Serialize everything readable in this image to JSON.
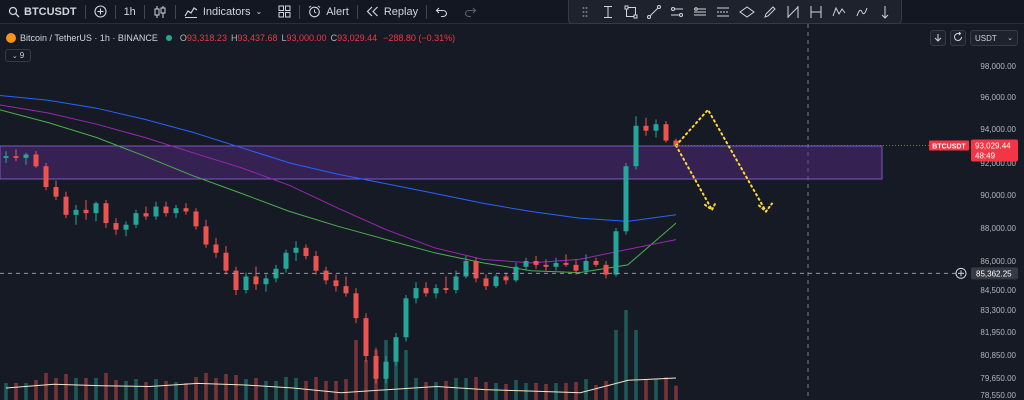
{
  "toolbar": {
    "symbol": "BTCUSDT",
    "add_symbol_icon": "plus-circle-icon",
    "interval": "1h",
    "chart_type_icon": "candles-icon",
    "indicators_label": "Indicators",
    "layouts_icon": "grid-icon",
    "alert_label": "Alert",
    "replay_label": "Replay",
    "undo_icon": "undo-icon",
    "redo_icon": "redo-icon"
  },
  "drawing_tools": [
    "text-cursor-icon",
    "rectangle-icon",
    "trend-line-icon",
    "parallel-channel-icon",
    "horizontal-ray-icon",
    "long-position-icon",
    "ellipse-icon",
    "pen-icon",
    "fib-retracement-icon",
    "pitchfork-icon",
    "xabcd-pattern-icon",
    "path-icon",
    "text-icon"
  ],
  "legend": {
    "title": "Bitcoin / TetherUS · 1h · BINANCE",
    "o_key": "O",
    "o_val": "93,318.23",
    "h_key": "H",
    "h_val": "93,437.68",
    "l_key": "L",
    "l_val": "93,000.00",
    "c_key": "C",
    "c_val": "93,029.44",
    "change": "−288.80 (−0.31%)",
    "collapse_count": "9"
  },
  "right_tools": {
    "scroll_icon": "arrow-down-icon",
    "reset_icon": "refresh-icon",
    "currency": "USDT"
  },
  "colors": {
    "up": "#26a69a",
    "down": "#ef5350",
    "zone_fill": "#5b2a8a",
    "ma_fast": "#4caf50",
    "ma_mid": "#9c27b0",
    "ma_slow": "#2962ff",
    "price_tag": "#f23645",
    "annotation": "#fdd835"
  },
  "price_axis": {
    "ticks": [
      "98,000.00",
      "96,000.00",
      "94,000.00",
      "92,000.00",
      "90,000.00",
      "88,000.00",
      "86,000.00",
      "84,500.00",
      "83,300.00",
      "81,950.00",
      "80,850.00",
      "79,650.00",
      "78,550.00"
    ],
    "current_label": "BTCUSDT",
    "current_price": "93,029.44",
    "countdown": "48:49",
    "cursor_price": "85,362.25"
  },
  "chart_data": {
    "type": "candlestick",
    "symbol": "BTCUSDT",
    "exchange": "BINANCE",
    "interval": "1h",
    "price_range": [
      77500,
      99000
    ],
    "last_close": 93029.44,
    "crosshair_price": 85362.25,
    "supply_zone": [
      91000,
      93000
    ],
    "candles": [
      [
        92300,
        92700,
        92000,
        92400
      ],
      [
        92400,
        92800,
        92100,
        92300
      ],
      [
        92300,
        92600,
        91900,
        92500
      ],
      [
        92500,
        92700,
        91700,
        91800
      ],
      [
        91800,
        92000,
        90300,
        90500
      ],
      [
        90500,
        90900,
        89700,
        89900
      ],
      [
        89900,
        90200,
        88600,
        88800
      ],
      [
        88800,
        89400,
        88200,
        89100
      ],
      [
        89100,
        89700,
        88500,
        88900
      ],
      [
        88900,
        89600,
        88400,
        89500
      ],
      [
        89500,
        89700,
        88000,
        88300
      ],
      [
        88300,
        88600,
        87600,
        87900
      ],
      [
        87900,
        88400,
        87500,
        88200
      ],
      [
        88200,
        89100,
        88000,
        88900
      ],
      [
        88900,
        89300,
        88500,
        88700
      ],
      [
        88700,
        89600,
        88500,
        89300
      ],
      [
        89300,
        89600,
        88700,
        88900
      ],
      [
        88900,
        89400,
        88600,
        89200
      ],
      [
        89200,
        89500,
        88800,
        89000
      ],
      [
        89000,
        89200,
        87900,
        88100
      ],
      [
        88100,
        88500,
        86800,
        87000
      ],
      [
        87000,
        87400,
        86200,
        86500
      ],
      [
        86500,
        86900,
        85300,
        85500
      ],
      [
        85500,
        85700,
        84200,
        84500
      ],
      [
        84500,
        85400,
        84300,
        85200
      ],
      [
        85200,
        85700,
        84500,
        84800
      ],
      [
        84800,
        85300,
        84400,
        85100
      ],
      [
        85100,
        85800,
        84900,
        85600
      ],
      [
        85600,
        86700,
        85400,
        86500
      ],
      [
        86500,
        87200,
        86000,
        86800
      ],
      [
        86800,
        87000,
        86100,
        86300
      ],
      [
        86300,
        86600,
        85300,
        85500
      ],
      [
        85500,
        85700,
        84800,
        85000
      ],
      [
        85000,
        85300,
        84400,
        84700
      ],
      [
        84700,
        85200,
        84100,
        84300
      ],
      [
        84300,
        84600,
        82500,
        82800
      ],
      [
        82800,
        83100,
        80500,
        80800
      ],
      [
        80800,
        81200,
        79300,
        79600
      ],
      [
        79600,
        80800,
        79300,
        80500
      ],
      [
        80500,
        81900,
        80300,
        81700
      ],
      [
        81700,
        84200,
        81500,
        84000
      ],
      [
        84000,
        84900,
        83700,
        84600
      ],
      [
        84600,
        84900,
        84100,
        84300
      ],
      [
        84300,
        84800,
        84000,
        84600
      ],
      [
        84600,
        85200,
        84300,
        84500
      ],
      [
        84500,
        85500,
        84300,
        85200
      ],
      [
        85200,
        86300,
        85100,
        86000
      ],
      [
        86000,
        86200,
        84900,
        85100
      ],
      [
        85100,
        85300,
        84500,
        84700
      ],
      [
        84700,
        85300,
        84600,
        85200
      ],
      [
        85200,
        85400,
        84800,
        85000
      ],
      [
        85000,
        85900,
        84900,
        85700
      ],
      [
        85700,
        86200,
        85500,
        86000
      ],
      [
        86000,
        86300,
        85600,
        85800
      ],
      [
        85800,
        86100,
        85500,
        85700
      ],
      [
        85700,
        86200,
        85500,
        85900
      ],
      [
        85900,
        86400,
        85700,
        85800
      ],
      [
        85800,
        86100,
        85300,
        85500
      ],
      [
        85500,
        86400,
        85300,
        86000
      ],
      [
        86000,
        86200,
        85700,
        85800
      ],
      [
        85800,
        86000,
        85100,
        85300
      ],
      [
        85300,
        88000,
        85200,
        87800
      ],
      [
        87800,
        92000,
        87600,
        91800
      ],
      [
        91800,
        94800,
        91600,
        94200
      ],
      [
        94200,
        94700,
        93600,
        93900
      ],
      [
        93900,
        94600,
        93500,
        94300
      ],
      [
        94300,
        94500,
        93200,
        93318
      ],
      [
        93318,
        93437,
        93000,
        93029
      ]
    ],
    "moving_averages": [
      {
        "color": "#4caf50",
        "values": [
          95200,
          94400,
          93500,
          92400,
          91200,
          90100,
          89000,
          88100,
          87300,
          86500,
          85900,
          85500,
          85400,
          85800,
          88300
        ]
      },
      {
        "color": "#9c27b0",
        "values": [
          95500,
          95000,
          94300,
          93500,
          92600,
          91700,
          90600,
          89200,
          87900,
          86800,
          86100,
          85900,
          86100,
          86700,
          87300
        ]
      },
      {
        "color": "#2962ff",
        "values": [
          96100,
          95800,
          95300,
          94600,
          93800,
          92900,
          92000,
          91300,
          90700,
          90100,
          89500,
          89000,
          88600,
          88400,
          88800
        ]
      }
    ],
    "volume_ma": [
      79000,
      79250,
      79150,
      79100,
      79300,
      79200,
      79000,
      78700,
      78900,
      79100,
      78900,
      78800,
      78700,
      79500,
      79650
    ],
    "projection_paths": [
      [
        [
          93029,
          0
        ],
        [
          95000,
          1
        ],
        [
          89000,
          2
        ]
      ],
      [
        [
          93029,
          0
        ],
        [
          89000,
          1
        ]
      ]
    ]
  }
}
